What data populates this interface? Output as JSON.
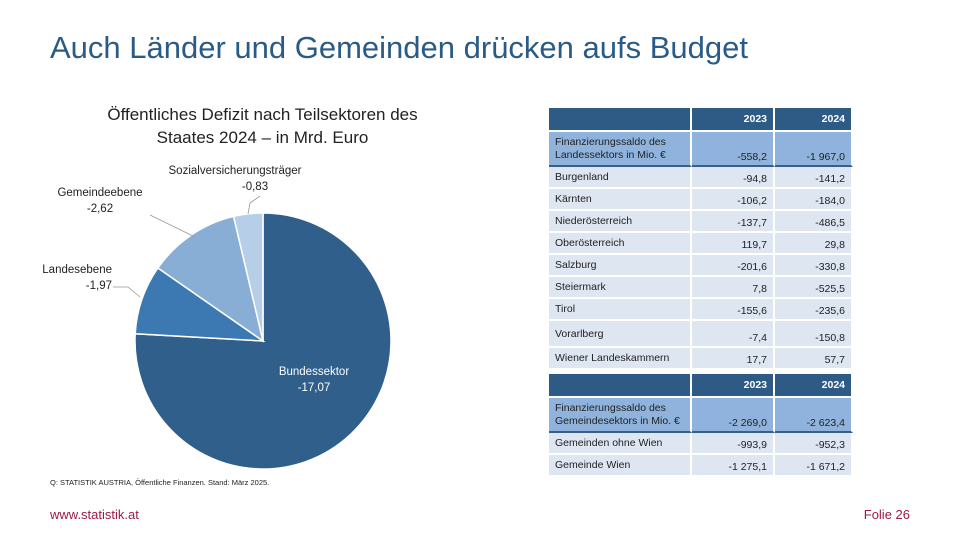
{
  "slide": {
    "title": "Auch Länder und Gemeinden drücken aufs Budget",
    "source": "Q: STATISTIK AUSTRIA, Öffentliche Finanzen. Stand: März 2025.",
    "website": "www.statistik.at",
    "page": "Folie 26"
  },
  "chart_data": {
    "type": "pie",
    "title": "Öffentliches Defizit nach Teilsektoren des Staates 2024  – in Mrd. Euro",
    "title_lines": [
      "Öffentliches Defizit nach Teilsektoren des",
      "Staates 2024  – in Mrd. Euro"
    ],
    "slices": [
      {
        "label": "Bundessektor",
        "value": -17.07,
        "display": "-17,07",
        "color": "#2f5f8a"
      },
      {
        "label": "Landesebene",
        "value": -1.97,
        "display": "-1,97",
        "color": "#3c79b2"
      },
      {
        "label": "Gemeindeebene",
        "value": -2.62,
        "display": "-2,62",
        "color": "#89aed6"
      },
      {
        "label": "Sozialversicherungsträger",
        "value": -0.83,
        "display": "-0,83",
        "color": "#b6cee7"
      }
    ],
    "start": "12 o'clock, clockwise"
  },
  "table_laender": {
    "headers": [
      "",
      "2023",
      "2024"
    ],
    "summary": {
      "label": "Finanzierungssaldo des Landessektors in Mio. €",
      "v2023": "-558,2",
      "v2024": "-1 967,0"
    },
    "rows": [
      {
        "label": "Burgenland",
        "v2023": "-94,8",
        "v2024": "-141,2"
      },
      {
        "label": "Kärnten",
        "v2023": "-106,2",
        "v2024": "-184,0"
      },
      {
        "label": "Niederösterreich",
        "v2023": "-137,7",
        "v2024": "-486,5"
      },
      {
        "label": "Oberösterreich",
        "v2023": "119,7",
        "v2024": "29,8"
      },
      {
        "label": "Salzburg",
        "v2023": "-201,6",
        "v2024": "-330,8"
      },
      {
        "label": "Steiermark",
        "v2023": "7,8",
        "v2024": "-525,5"
      },
      {
        "label": "Tirol",
        "v2023": "-155,6",
        "v2024": "-235,6"
      },
      {
        "label": "Vorarlberg",
        "v2023": "-7,4",
        "v2024": "-150,8"
      },
      {
        "label": "Wiener Landeskammern",
        "v2023": "17,7",
        "v2024": "57,7"
      }
    ]
  },
  "table_gemeinden": {
    "headers": [
      "",
      "2023",
      "2024"
    ],
    "summary": {
      "label": "Finanzierungssaldo des Gemeindesektors in Mio. €",
      "v2023": "-2 269,0",
      "v2024": "-2 623,4"
    },
    "rows": [
      {
        "label": "Gemeinden ohne Wien",
        "v2023": "-993,9",
        "v2024": "-952,3"
      },
      {
        "label": "Gemeinde Wien",
        "v2023": "-1 275,1",
        "v2024": "-1 671,2"
      }
    ]
  }
}
